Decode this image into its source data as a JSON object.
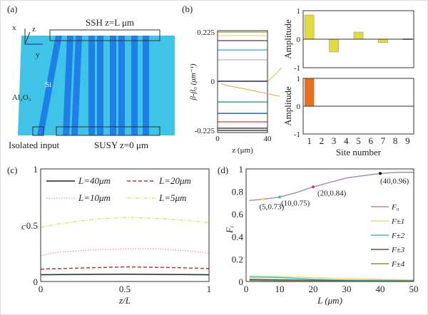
{
  "panel_a": {
    "label": "(a)",
    "axis_x": "x",
    "axis_y": "y",
    "axis_z": "z",
    "top_caption": "SSH z=L μm",
    "si_label": "Si",
    "substrate_label": "Al₂O₃",
    "isolated_label": "Isolated input",
    "bottom_caption": "SUSY z=0 μm",
    "colors": {
      "substrate": "#3fc3e6",
      "waveguide": "#1e7fe8"
    }
  },
  "chart_data": [
    {
      "panel": "(b)",
      "type": "line",
      "xlabel": "z (μm)",
      "ylabel": "β-β₀ (μm⁻¹)",
      "xlim": [
        0,
        40
      ],
      "ylim": [
        -0.225,
        0.225
      ],
      "xticks": [
        "0",
        "40"
      ],
      "yticks": [
        "0.225",
        "0",
        "-0.225"
      ],
      "levels": [
        {
          "y": 0.225,
          "color": "#a8a860"
        },
        {
          "y": 0.209,
          "color": "#e6e29a"
        },
        {
          "y": 0.186,
          "color": "#6a5a6a"
        },
        {
          "y": 0.143,
          "color": "#40c0c0"
        },
        {
          "y": 0.098,
          "color": "#e8b8d0"
        },
        {
          "y": 0.0,
          "color": "#262660"
        },
        {
          "y": -0.095,
          "color": "#40a080"
        },
        {
          "y": -0.147,
          "color": "#3060a0"
        },
        {
          "y": -0.186,
          "color": "#d06050"
        },
        {
          "y": -0.215,
          "color": "#444"
        },
        {
          "y": -0.225,
          "color": "#444"
        }
      ]
    },
    {
      "panel": "(b) top",
      "type": "bar",
      "ylabel": "Amplitude",
      "ylim": [
        -1,
        1
      ],
      "yticks": [
        "1",
        "0",
        "-1"
      ],
      "categories": [
        1,
        2,
        3,
        4,
        5,
        6,
        7,
        8,
        9
      ],
      "values": [
        0.85,
        0,
        -0.45,
        0,
        0.25,
        0,
        -0.12,
        0,
        0.02
      ],
      "color": "#e0dc40"
    },
    {
      "panel": "(b) bottom",
      "type": "bar",
      "ylabel": "Amplitude",
      "xlabel": "Site number",
      "ylim": [
        -1,
        1
      ],
      "yticks": [
        "1",
        "0",
        "-1"
      ],
      "xticks": [
        "1",
        "2",
        "3",
        "4",
        "5",
        "6",
        "7",
        "8",
        "9"
      ],
      "categories": [
        1,
        2,
        3,
        4,
        5,
        6,
        7,
        8,
        9
      ],
      "values": [
        1,
        0,
        0,
        0,
        0,
        0,
        0,
        0,
        0
      ],
      "color": "#e8701c"
    },
    {
      "panel": "(c)",
      "type": "line",
      "xlabel": "z/L",
      "ylabel": "c",
      "xlim": [
        0,
        1
      ],
      "ylim": [
        0,
        1
      ],
      "xticks": [
        "0",
        "0.5",
        "1"
      ],
      "yticks": [
        "0",
        "0.5",
        "1"
      ],
      "legend": "top",
      "series": [
        {
          "name": "L=40μm",
          "color": "#222",
          "dash": "solid",
          "x": [
            0,
            0.5,
            1
          ],
          "y": [
            0.06,
            0.065,
            0.06
          ]
        },
        {
          "name": "L=20μm",
          "color": "#c03040",
          "dash": "dashed",
          "x": [
            0,
            0.25,
            0.5,
            0.75,
            1
          ],
          "y": [
            0.11,
            0.12,
            0.13,
            0.125,
            0.115
          ]
        },
        {
          "name": "L=10μm",
          "color": "#e0a8b8",
          "dash": "dotted",
          "x": [
            0,
            0.1,
            0.3,
            0.5,
            0.7,
            0.9,
            1
          ],
          "y": [
            0.23,
            0.26,
            0.28,
            0.29,
            0.29,
            0.27,
            0.25
          ]
        },
        {
          "name": "L=5μm",
          "color": "#e6e680",
          "dash": "dashdot",
          "x": [
            0,
            0.1,
            0.3,
            0.5,
            0.7,
            0.9,
            1
          ],
          "y": [
            0.48,
            0.51,
            0.55,
            0.57,
            0.56,
            0.54,
            0.52
          ]
        }
      ]
    },
    {
      "panel": "(d)",
      "type": "line",
      "xlabel": "L (μm)",
      "ylabel": "Fᵢ",
      "xlim": [
        0,
        50
      ],
      "ylim": [
        0,
        1
      ],
      "xticks": [
        "0",
        "10",
        "20",
        "30",
        "40",
        "50"
      ],
      "yticks": [
        "0",
        "0.2",
        "0.4",
        "0.6",
        "0.8",
        "1"
      ],
      "legend": "right",
      "series": [
        {
          "name": "F₀",
          "color": "#a890b0",
          "x": [
            1,
            5,
            10,
            15,
            20,
            25,
            30,
            35,
            40,
            45,
            50
          ],
          "y": [
            0.72,
            0.73,
            0.75,
            0.79,
            0.84,
            0.88,
            0.92,
            0.94,
            0.96,
            0.97,
            0.97
          ]
        },
        {
          "name": "F±1",
          "color": "#e6e080",
          "x": [
            1,
            10,
            20,
            30,
            40,
            50
          ],
          "y": [
            0.05,
            0.045,
            0.035,
            0.025,
            0.02,
            0.015
          ]
        },
        {
          "name": "F±2",
          "color": "#40c0c0",
          "x": [
            1,
            10,
            20,
            30,
            40,
            50
          ],
          "y": [
            0.04,
            0.035,
            0.02,
            0.012,
            0.01,
            0.008
          ]
        },
        {
          "name": "F±3",
          "color": "#604a60",
          "x": [
            1,
            10,
            20,
            30,
            40,
            50
          ],
          "y": [
            0.02,
            0.015,
            0.01,
            0.006,
            0.004,
            0.003
          ]
        },
        {
          "name": "F±4",
          "color": "#809040",
          "x": [
            1,
            10,
            20,
            30,
            40,
            50
          ],
          "y": [
            0.01,
            0.008,
            0.005,
            0.003,
            0.002,
            0.002
          ]
        }
      ],
      "annotations": [
        {
          "x": 5,
          "y": 0.73,
          "text": "(5,0.73)",
          "color": "#e6e080"
        },
        {
          "x": 10,
          "y": 0.75,
          "text": "(10,0.75)",
          "color": "#40c0c0"
        },
        {
          "x": 20,
          "y": 0.84,
          "text": "(20,0.84)",
          "color": "#d04060"
        },
        {
          "x": 40,
          "y": 0.96,
          "text": "(40,0.96)",
          "color": "#111"
        }
      ]
    }
  ],
  "labels": {
    "b": "(b)",
    "c": "(c)",
    "d": "(d)"
  }
}
